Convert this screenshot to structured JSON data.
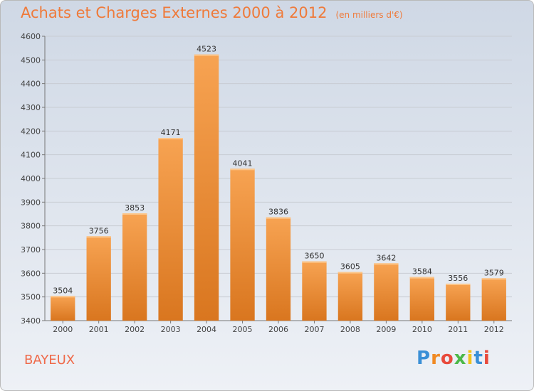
{
  "header": {
    "title": "Achats et Charges Externes 2000 à 2012",
    "unit": "(en milliers d'€)"
  },
  "footer": {
    "city": "BAYEUX",
    "logo": "Proxiti"
  },
  "colors": {
    "bar_top": "#f7a352",
    "bar_bottom": "#d9761f",
    "title": "#ef7a3a"
  },
  "chart_data": {
    "type": "bar",
    "categories": [
      "2000",
      "2001",
      "2002",
      "2003",
      "2004",
      "2005",
      "2006",
      "2007",
      "2008",
      "2009",
      "2010",
      "2011",
      "2012"
    ],
    "values": [
      3504,
      3756,
      3853,
      4171,
      4523,
      4041,
      3836,
      3650,
      3605,
      3642,
      3584,
      3556,
      3579
    ],
    "title": "Achats et Charges Externes 2000 à 2012",
    "ylim": [
      3400,
      4600
    ],
    "yticks": [
      3400,
      3500,
      3600,
      3700,
      3800,
      3900,
      4000,
      4100,
      4200,
      4300,
      4400,
      4500,
      4600
    ],
    "grid": true
  }
}
